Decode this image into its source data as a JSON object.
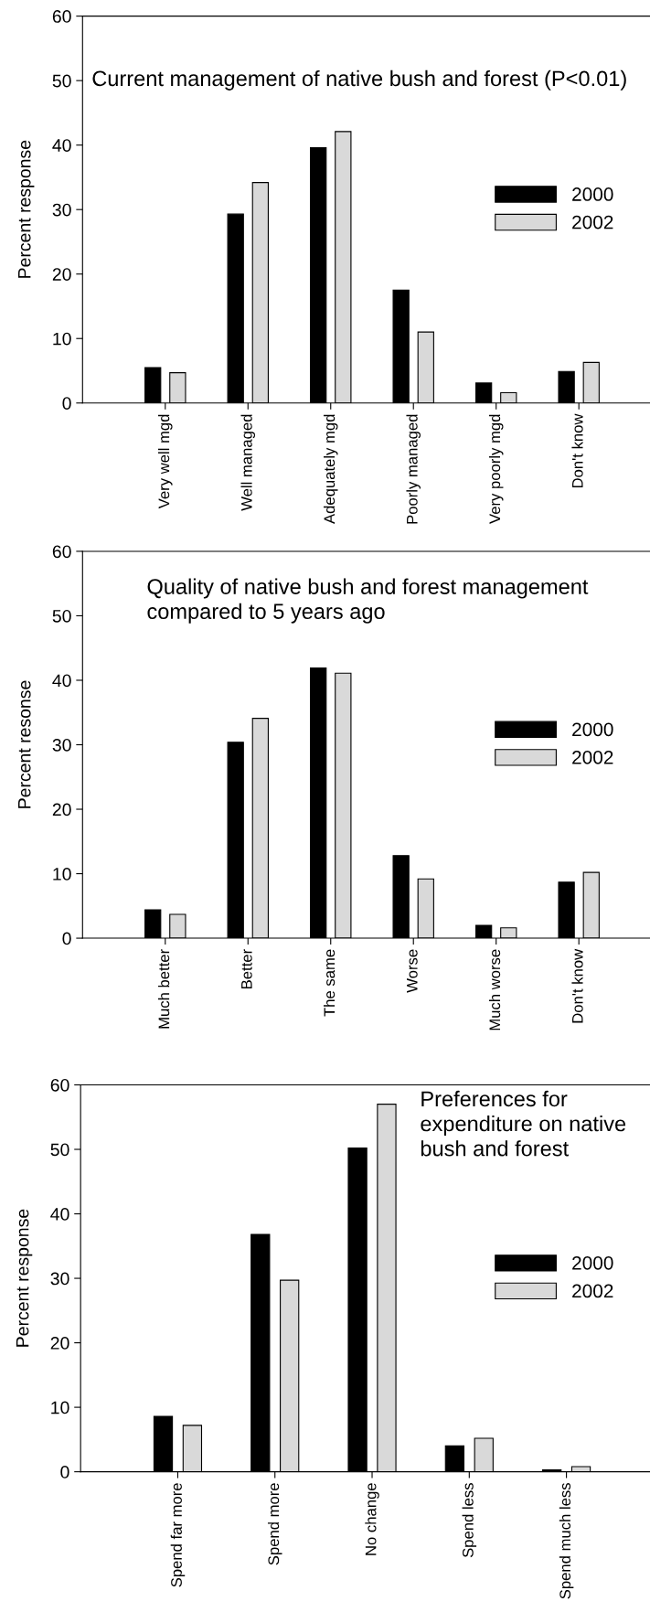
{
  "chart_data": [
    {
      "type": "bar",
      "title": "Current management of native bush and forest (P<0.01)",
      "ylabel": "Percent response",
      "categories": [
        "Very well mgd",
        "Well managed",
        "Adequately mgd",
        "Poorly managed",
        "Very poorly mgd",
        "Don't know"
      ],
      "series": [
        {
          "name": "2000",
          "color": "#000000",
          "values": [
            5.5,
            29.3,
            39.6,
            17.5,
            3.1,
            4.9
          ]
        },
        {
          "name": "2002",
          "color": "#d9d9d9",
          "values": [
            4.7,
            34.2,
            42.1,
            11.0,
            1.6,
            6.3
          ]
        }
      ],
      "ylim": [
        0,
        60
      ],
      "yticks": [
        0,
        10,
        20,
        30,
        40,
        50,
        60
      ],
      "legend": "right"
    },
    {
      "type": "bar",
      "title": "Quality of native bush and forest management\ncompared to 5 years ago",
      "ylabel": "Percent resonse",
      "categories": [
        "Much better",
        "Better",
        "The same",
        "Worse",
        "Much worse",
        "Don't know"
      ],
      "series": [
        {
          "name": "2000",
          "color": "#000000",
          "values": [
            4.4,
            30.4,
            41.9,
            12.8,
            2.0,
            8.7
          ]
        },
        {
          "name": "2002",
          "color": "#d9d9d9",
          "values": [
            3.7,
            34.1,
            41.1,
            9.2,
            1.6,
            10.2
          ]
        }
      ],
      "ylim": [
        0,
        60
      ],
      "yticks": [
        0,
        10,
        20,
        30,
        40,
        50,
        60
      ],
      "legend": "right"
    },
    {
      "type": "bar",
      "title": "Preferences for\nexpenditure on native\nbush and forest",
      "ylabel": "Percent response",
      "categories": [
        "Spend far more",
        "Spend more",
        "No change",
        "Spend less",
        "Spend much less"
      ],
      "series": [
        {
          "name": "2000",
          "color": "#000000",
          "values": [
            8.6,
            36.8,
            50.2,
            4.0,
            0.3
          ]
        },
        {
          "name": "2002",
          "color": "#d9d9d9",
          "values": [
            7.2,
            29.7,
            57.0,
            5.2,
            0.8
          ]
        }
      ],
      "ylim": [
        0,
        60
      ],
      "yticks": [
        0,
        10,
        20,
        30,
        40,
        50,
        60
      ],
      "legend": "right"
    }
  ]
}
